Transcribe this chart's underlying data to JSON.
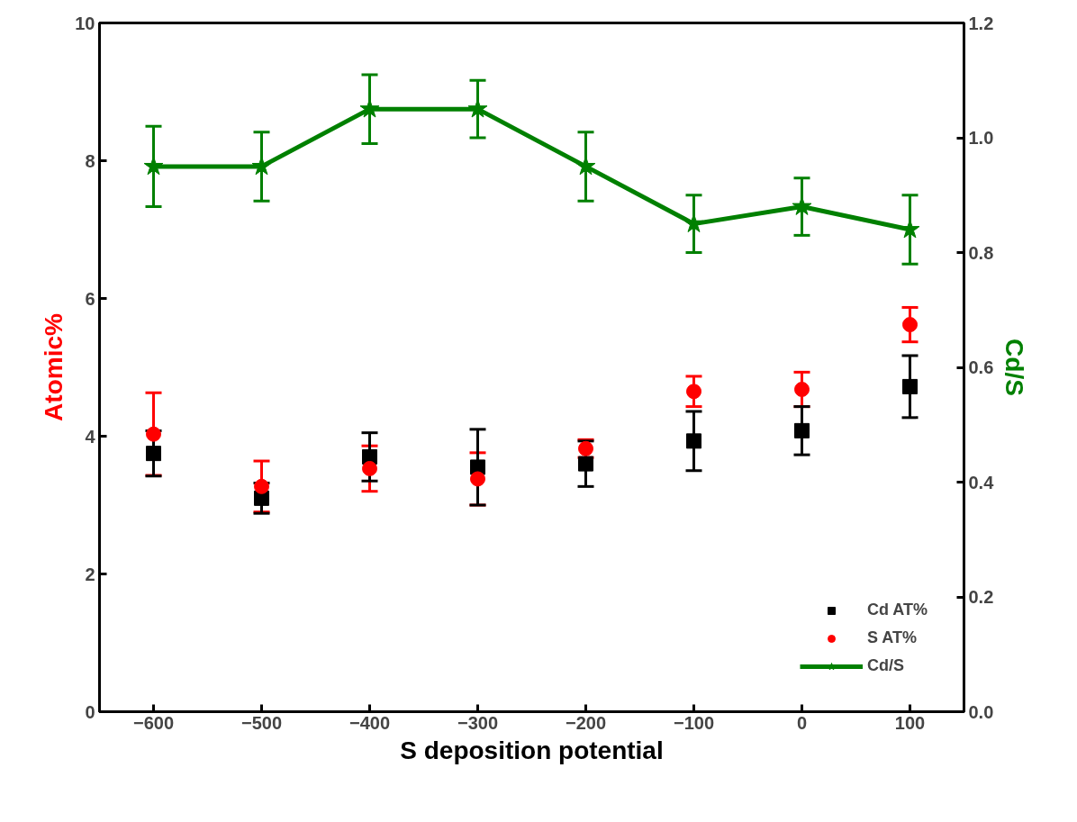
{
  "chart_data": {
    "type": "scatter",
    "xlabel": "S deposition potential",
    "ylabel": "Atomic%",
    "y2label": "Cd/S",
    "x": [
      -600,
      -500,
      -400,
      -300,
      -200,
      -100,
      0,
      100
    ],
    "xlim": [
      -650,
      150
    ],
    "xticks": [
      -600,
      -500,
      -400,
      -300,
      -200,
      -100,
      0,
      100
    ],
    "ylim": [
      0,
      10
    ],
    "yticks": [
      0,
      2,
      4,
      6,
      8,
      10
    ],
    "y2lim": [
      0,
      1.2
    ],
    "y2ticks": [
      {
        "value": 0,
        "label": "0.0"
      },
      0.2,
      0.4,
      0.6,
      0.8,
      {
        "value": 1,
        "label": "1.0"
      },
      1.2
    ],
    "grid": false,
    "legend": "bottom right",
    "series": [
      {
        "name": "Cd AT%",
        "color": "#000000",
        "marker": "square",
        "values": [
          3.75,
          3.1,
          3.7,
          3.55,
          3.6,
          3.93,
          4.08,
          4.72
        ],
        "errors": [
          0.33,
          0.22,
          0.35,
          0.55,
          0.33,
          0.43,
          0.35,
          0.45
        ]
      },
      {
        "name": "S AT%",
        "color": "#ff0000",
        "marker": "circle",
        "values": [
          4.03,
          3.27,
          3.53,
          3.38,
          3.82,
          4.65,
          4.68,
          5.62
        ],
        "errors": [
          0.6,
          0.37,
          0.33,
          0.38,
          0.13,
          0.22,
          0.25,
          0.25
        ]
      },
      {
        "name": "Cd/S",
        "type": "line",
        "axis": "y2",
        "color": "#008000",
        "marker": "star",
        "line_style": "solid",
        "values": [
          0.95,
          0.95,
          1.05,
          1.05,
          0.95,
          0.85,
          0.88,
          0.84
        ],
        "errors": [
          0.07,
          0.06,
          0.06,
          0.05,
          0.06,
          0.05,
          0.05,
          0.06
        ]
      }
    ]
  }
}
